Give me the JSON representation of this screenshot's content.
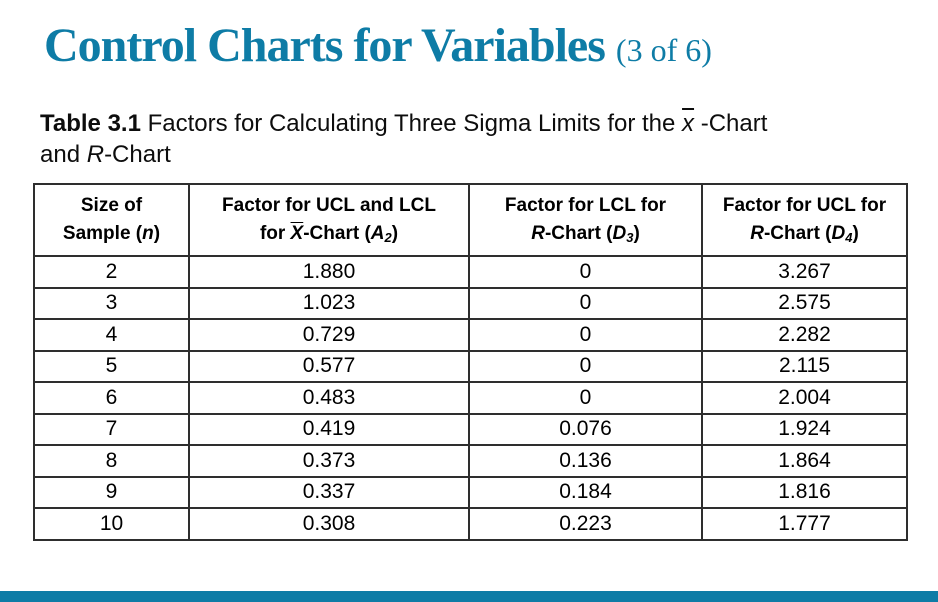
{
  "slide": {
    "title": "Control Charts for Variables",
    "title_suffix": "(3 of 6)",
    "accent_color": "#0E7CA6"
  },
  "caption": {
    "label": "Table 3.1",
    "line1_pre": "Factors for Calculating Three Sigma Limits for the ",
    "xbar": "x",
    "line1_post": " -Chart",
    "line2_pre": "and ",
    "rvar": "R",
    "line2_post": "-Chart"
  },
  "table": {
    "headers": {
      "col1": {
        "line1": "Size of",
        "line2_pre": "Sample (",
        "var": "n",
        "line2_post": ")"
      },
      "col2": {
        "line1": "Factor for UCL and LCL",
        "line2_pre": "for ",
        "xbar": "X",
        "mid": "-Chart (",
        "var2": "A",
        "sub": "2",
        "post": ")"
      },
      "col3": {
        "line1": "Factor for LCL for",
        "var1": "R",
        "mid": "-Chart (",
        "var2": "D",
        "sub": "3",
        "post": ")"
      },
      "col4": {
        "line1": "Factor for UCL for",
        "var1": "R",
        "mid": "-Chart (",
        "var2": "D",
        "sub": "4",
        "post": ")"
      }
    },
    "rows": [
      {
        "n": "2",
        "a2": "1.880",
        "d3": "0",
        "d4": "3.267"
      },
      {
        "n": "3",
        "a2": "1.023",
        "d3": "0",
        "d4": "2.575"
      },
      {
        "n": "4",
        "a2": "0.729",
        "d3": "0",
        "d4": "2.282"
      },
      {
        "n": "5",
        "a2": "0.577",
        "d3": "0",
        "d4": "2.115"
      },
      {
        "n": "6",
        "a2": "0.483",
        "d3": "0",
        "d4": "2.004"
      },
      {
        "n": "7",
        "a2": "0.419",
        "d3": "0.076",
        "d4": "1.924"
      },
      {
        "n": "8",
        "a2": "0.373",
        "d3": "0.136",
        "d4": "1.864"
      },
      {
        "n": "9",
        "a2": "0.337",
        "d3": "0.184",
        "d4": "1.816"
      },
      {
        "n": "10",
        "a2": "0.308",
        "d3": "0.223",
        "d4": "1.777"
      }
    ]
  },
  "footer": {
    "bar_color": "#0E7CA6"
  }
}
